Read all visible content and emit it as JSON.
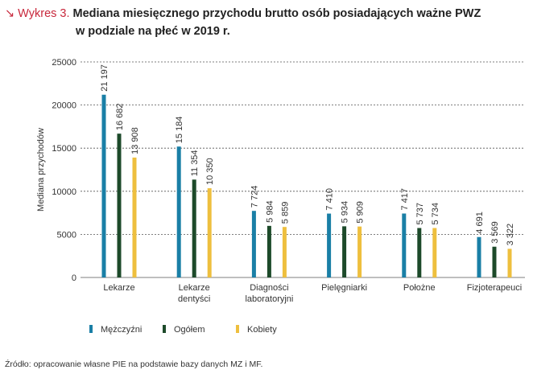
{
  "figure_label": "↘ Wykres 3.",
  "title_line1": "Mediana miesięcznego przychodu brutto osób posiadających ważne PWZ",
  "title_line2": "w podziale na płeć w 2019 r.",
  "source": "Źródło: opracowanie własne PIE na podstawie bazy danych MZ i MF.",
  "chart_data": {
    "type": "bar",
    "ylabel": "Mediana przychodów",
    "xlabel": "",
    "ylim": [
      0,
      25000
    ],
    "yticks": [
      0,
      5000,
      10000,
      15000,
      20000,
      25000
    ],
    "grid": true,
    "legend_position": "bottom-left",
    "categories": [
      [
        "Lekarze"
      ],
      [
        "Lekarze",
        "dentyści"
      ],
      [
        "Diagności",
        "laboratoryjni"
      ],
      [
        "Pielęgniarki"
      ],
      [
        "Położne"
      ],
      [
        "Fizjoterapeuci"
      ]
    ],
    "series": [
      {
        "name": "Mężczyźni",
        "color": "#1a7fa6",
        "values": [
          21197,
          15184,
          7724,
          7410,
          7417,
          4691
        ],
        "labels": [
          "21 197",
          "15 184",
          "7 724",
          "7 410",
          "7 417",
          "4 691"
        ]
      },
      {
        "name": "Ogółem",
        "color": "#1d4a2a",
        "values": [
          16682,
          11354,
          5984,
          5934,
          5737,
          3569
        ],
        "labels": [
          "16 682",
          "11 354",
          "5 984",
          "5 934",
          "5 737",
          "3 569"
        ]
      },
      {
        "name": "Kobiety",
        "color": "#eebf3e",
        "values": [
          13908,
          10350,
          5859,
          5909,
          5734,
          3322
        ],
        "labels": [
          "13 908",
          "10 350",
          "5 859",
          "5 909",
          "5 734",
          "3 322"
        ]
      }
    ]
  }
}
